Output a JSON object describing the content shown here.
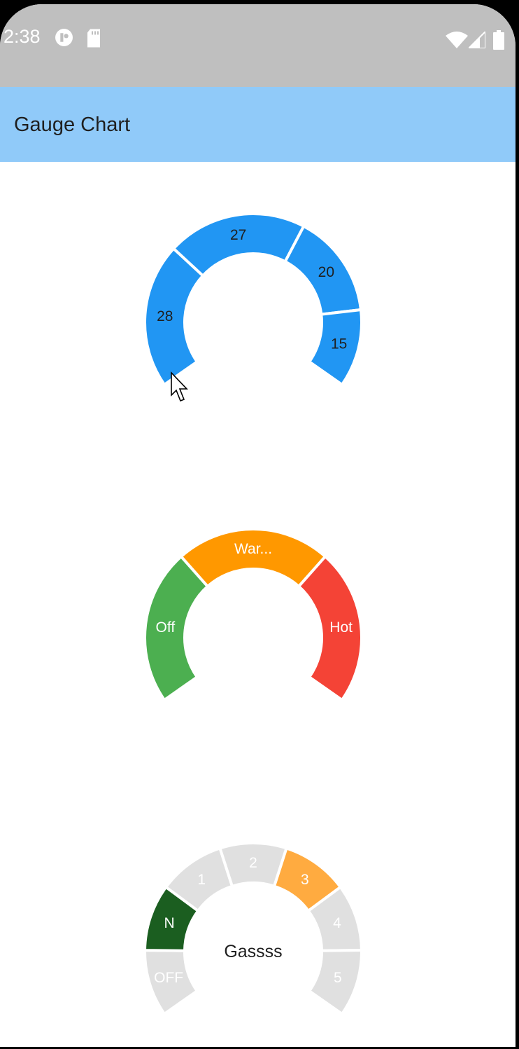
{
  "status_bar": {
    "time": "2:38",
    "icons": [
      "notification-icon",
      "sd-card-icon",
      "wifi-icon",
      "signal-icon",
      "battery-icon"
    ]
  },
  "app_bar": {
    "title": "Gauge Chart"
  },
  "colors": {
    "app_bar": "#90caf9",
    "status_bar": "#bfbfbf",
    "blue": "#2196f3",
    "green": "#4caf50",
    "orange": "#ff9800",
    "red": "#f44336",
    "dark_green": "#1b5e20",
    "light_orange": "#ffab40",
    "grey": "#e0e0e0"
  },
  "chart_data": [
    {
      "type": "gauge",
      "segments": [
        {
          "label": "28",
          "value": 28,
          "color": "#2196f3",
          "label_color": "#1f1f1f"
        },
        {
          "label": "27",
          "value": 27,
          "color": "#2196f3",
          "label_color": "#1f1f1f"
        },
        {
          "label": "20",
          "value": 20,
          "color": "#2196f3",
          "label_color": "#1f1f1f"
        },
        {
          "label": "15",
          "value": 15,
          "color": "#2196f3",
          "label_color": "#1f1f1f"
        }
      ],
      "center_label": ""
    },
    {
      "type": "gauge",
      "segments": [
        {
          "label": "Off",
          "value": 1,
          "color": "#4caf50",
          "label_color": "#ffffff"
        },
        {
          "label": "War...",
          "value": 1,
          "color": "#ff9800",
          "label_color": "#ffffff"
        },
        {
          "label": "Hot",
          "value": 1,
          "color": "#f44336",
          "label_color": "#ffffff"
        }
      ],
      "center_label": ""
    },
    {
      "type": "gauge",
      "segments": [
        {
          "label": "OFF",
          "value": 1,
          "color": "#e0e0e0",
          "label_color": "#ffffff"
        },
        {
          "label": "N",
          "value": 1,
          "color": "#1b5e20",
          "label_color": "#ffffff"
        },
        {
          "label": "1",
          "value": 1,
          "color": "#e0e0e0",
          "label_color": "#ffffff"
        },
        {
          "label": "2",
          "value": 1,
          "color": "#e0e0e0",
          "label_color": "#ffffff"
        },
        {
          "label": "3",
          "value": 1,
          "color": "#ffab40",
          "label_color": "#ffffff"
        },
        {
          "label": "4",
          "value": 1,
          "color": "#e0e0e0",
          "label_color": "#ffffff"
        },
        {
          "label": "5",
          "value": 1,
          "color": "#e0e0e0",
          "label_color": "#ffffff"
        }
      ],
      "center_label": "Gassss"
    }
  ]
}
